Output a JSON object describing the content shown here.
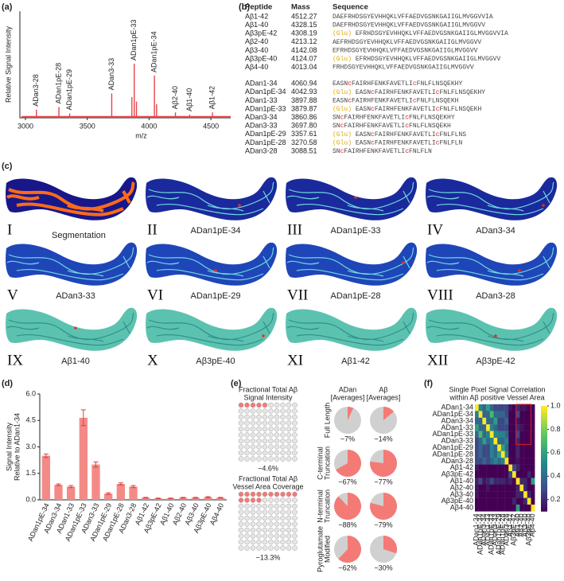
{
  "panel_labels": [
    "(a)",
    "(b)",
    "(c)",
    "(d)",
    "(e)",
    "(f)"
  ],
  "chart_data": [
    {
      "type": "spectrum",
      "y_label": "Relative Signal Intensity",
      "x_label": "m/z",
      "x": [
        3088.51,
        3270.58,
        3357.61,
        3697.8,
        3860.86,
        3879.87,
        3897.88,
        4042.93,
        4060.94,
        4213.12,
        4328.15,
        4512.27
      ],
      "values": [
        0.15,
        0.2,
        0.08,
        0.45,
        0.38,
        1.0,
        0.3,
        0.78,
        0.25,
        0.1,
        0.06,
        0.1
      ],
      "peak_labels": [
        "ADan3-28",
        "ADan1pE-28",
        "ADan1pE-29",
        "ADan3-33",
        null,
        "ADan1pE-33",
        null,
        "ADan1pE-34",
        null,
        "Aβ2-40",
        "Aβ1-40",
        "Aβ1-42"
      ],
      "xlim": [
        2955,
        4660
      ],
      "ylim": [
        0,
        1
      ],
      "xticks": [
        3000,
        3500,
        4000,
        4500
      ],
      "color": "#e8454a"
    },
    {
      "type": "bar",
      "y_label": [
        "Signal Intensity",
        "Relative to ADan1-34"
      ],
      "categories": [
        "ADan1pE-34",
        "ADan3-34",
        "ADan1-33",
        "ADan1pE-33",
        "ADan3-33",
        "ADan1pE-29",
        "ADan1pE-28",
        "ADan3-28",
        "Aβ1-42",
        "Aβ3pE-42",
        "Aβ1-40",
        "Aβ2-40",
        "Aβ3-40",
        "Aβ3pE-40",
        "Aβ4-40"
      ],
      "values": [
        2.5,
        0.85,
        0.75,
        4.65,
        2.0,
        0.35,
        0.9,
        0.75,
        0.12,
        0.08,
        0.08,
        0.12,
        0.12,
        0.15,
        0.12
      ],
      "errors": [
        0.1,
        0.05,
        0.06,
        0.45,
        0.15,
        0.05,
        0.06,
        0.06,
        0.02,
        0.02,
        0.02,
        0.02,
        0.02,
        0.03,
        0.02
      ],
      "ylim": [
        0,
        6
      ],
      "yticks": [
        {
          "value": 0,
          "label": "0.0"
        },
        1.5,
        {
          "value": 3,
          "label": "3.0"
        },
        4.5,
        {
          "value": 6,
          "label": "6.0"
        }
      ],
      "color": "#f48a86",
      "error_color": "#d94040"
    },
    {
      "type": "heatmap",
      "title": [
        "Single Pixel Signal Correlation",
        "within Aβ positive Vessel Area"
      ],
      "labels": [
        "ADan1-34",
        "ADan1pE-34",
        "ADan3-34",
        "ADan1-33",
        "ADan1pE-33",
        "ADan3-33",
        "ADan1pE-29",
        "ADan1pE-28",
        "ADan3-28",
        "Aβ1-42",
        "Aβ3pE-42",
        "Aβ1-40",
        "Aβ2-40",
        "Aβ3-40",
        "Aβ3pE-40",
        "Aβ4-40"
      ],
      "values": [
        [
          1,
          0.5,
          0.4,
          0.6,
          0.4,
          0.3,
          0.3,
          0.3,
          0.3,
          0.15,
          0.1,
          0.2,
          0.15,
          0.15,
          0.1,
          0.1
        ],
        [
          0.5,
          1,
          0.4,
          0.4,
          0.7,
          0.4,
          0.4,
          0.4,
          0.3,
          0.1,
          0.1,
          0.3,
          0.1,
          0.1,
          0.1,
          0.1
        ],
        [
          0.4,
          0.4,
          1,
          0.4,
          0.4,
          0.6,
          0.3,
          0.3,
          0.4,
          0.1,
          0.1,
          0.15,
          0.1,
          0.1,
          0.1,
          0.1
        ],
        [
          0.6,
          0.4,
          0.4,
          1,
          0.5,
          0.4,
          0.3,
          0.3,
          0.3,
          0.1,
          0.1,
          0.2,
          0.15,
          0.1,
          0.1,
          0.1
        ],
        [
          0.4,
          0.7,
          0.4,
          0.5,
          1,
          0.5,
          0.5,
          0.5,
          0.4,
          0.1,
          0.1,
          0.3,
          0.1,
          0.1,
          0.1,
          0.1
        ],
        [
          0.3,
          0.4,
          0.6,
          0.4,
          0.5,
          1,
          0.4,
          0.4,
          0.5,
          0.1,
          0.1,
          0.2,
          0.1,
          0.1,
          0.1,
          0.1
        ],
        [
          0.3,
          0.4,
          0.3,
          0.3,
          0.5,
          0.4,
          1,
          0.6,
          0.4,
          0.1,
          0.1,
          0.2,
          0.1,
          0.1,
          0.1,
          0.1
        ],
        [
          0.3,
          0.4,
          0.3,
          0.3,
          0.5,
          0.4,
          0.6,
          1,
          0.5,
          0.1,
          0.1,
          0.2,
          0.1,
          0.1,
          0.1,
          0.1
        ],
        [
          0.3,
          0.3,
          0.4,
          0.3,
          0.4,
          0.5,
          0.4,
          0.5,
          1,
          0.1,
          0.1,
          0.15,
          0.1,
          0.1,
          0.1,
          0.1
        ],
        [
          0.15,
          0.1,
          0.1,
          0.1,
          0.1,
          0.1,
          0.1,
          0.1,
          0.1,
          1,
          0.3,
          0.2,
          0.1,
          0.1,
          0.1,
          0.1
        ],
        [
          0.1,
          0.1,
          0.1,
          0.1,
          0.1,
          0.1,
          0.1,
          0.1,
          0.1,
          0.3,
          1,
          0.1,
          0.1,
          0.1,
          0.2,
          0.1
        ],
        [
          0.2,
          0.3,
          0.15,
          0.2,
          0.3,
          0.2,
          0.2,
          0.2,
          0.15,
          0.2,
          0.1,
          1,
          0.2,
          0.2,
          0.1,
          0.6
        ],
        [
          0.15,
          0.1,
          0.1,
          0.15,
          0.1,
          0.1,
          0.1,
          0.1,
          0.1,
          0.1,
          0.1,
          0.2,
          1,
          0.2,
          0.1,
          0.1
        ],
        [
          0.15,
          0.1,
          0.1,
          0.1,
          0.1,
          0.1,
          0.1,
          0.1,
          0.1,
          0.1,
          0.1,
          0.2,
          0.2,
          1,
          0.2,
          0.1
        ],
        [
          0.1,
          0.1,
          0.1,
          0.1,
          0.1,
          0.1,
          0.1,
          0.1,
          0.1,
          0.1,
          0.2,
          0.1,
          0.1,
          0.2,
          1,
          0.1
        ],
        [
          0.1,
          0.1,
          0.1,
          0.1,
          0.1,
          0.1,
          0.1,
          0.1,
          0.1,
          0.1,
          0.1,
          0.6,
          0.1,
          0.1,
          0.1,
          1
        ]
      ],
      "zlim": [
        0.1,
        1
      ],
      "zticks": [
        0.2,
        0.4,
        0.6,
        0.8,
        {
          "value": 1,
          "label": "1.0"
        }
      ],
      "colormap": "viridis"
    }
  ],
  "peptide_table": {
    "headers": [
      "Peptide",
      "Mass",
      "Sequence"
    ],
    "rows": [
      [
        "Aβ1-42",
        "4512.27",
        "DAEFRHDSGYEVHHQKLVFFAEDVGSNKGAIIGLMVGGVVIA"
      ],
      [
        "Aβ1-40",
        "4328.15",
        "DAEFRHDSGYEVHHQKLVFFAEDVGSNKGAIIGLMVGGVV"
      ],
      [
        "Aβ3pE-42",
        "4308.19",
        "(Glu) EFRHDSGYEVHHQKLVFFAEDVGSNKGAIIGLMVGGVVIA"
      ],
      [
        "Aβ2-40",
        "4213.12",
        "AEFRHDSGYEVHHQKLVFFAEDVGSNKGAIIGLMVGGVV"
      ],
      [
        "Aβ3-40",
        "4142.08",
        "EFRHDSGYEVHHQKLVFFAEDVGSNKGAIIGLMVGGVV"
      ],
      [
        "Aβ3pE-40",
        "4124.07",
        "(Glu) EFRHDSGYEVHHQKLVFFAEDVGSNKGAIIGLMVGGVV"
      ],
      [
        "Aβ4-40",
        "4013.04",
        "FRHDSGYEVHHQKLVFFAEDVGSNKGAIIGLMVGGVV"
      ],
      [
        "ADan1-34",
        "4060.94",
        "EASNcFAIRHFENKFAVETLIcFNLFLNSQEKHY"
      ],
      [
        "ADan1pE-34",
        "4042.93",
        "(Glu) EASNcFAIRHFENKFAVETLIcFNLFLNSQEKHY"
      ],
      [
        "ADan1-33",
        "3897.88",
        "EASNcFAIRHFENKFAVETLIcFNLFLNSQEKH"
      ],
      [
        "ADan1pE-33",
        "3879.87",
        "(Glu) EASNcFAIRHFENKFAVETLIcFNLFLNSQEKH"
      ],
      [
        "ADan3-34",
        "3860.86",
        "SNcFAIRHFENKFAVETLIcFNLFLNSQEKHY"
      ],
      [
        "ADan3-33",
        "3697.80",
        "SNcFAIRHFENKFAVETLIcFNLFLNSQEKH"
      ],
      [
        "ADan1pE-29",
        "3357.61",
        "(Glu) EASNcFAIRHFENKFAVETLIcFNLFLNS"
      ],
      [
        "ADan1pE-28",
        "3270.58",
        "(Glu) EASNcFAIRHFENKFAVETLIcFNLFLN"
      ],
      [
        "ADan3-28",
        "3088.51",
        "SNcFAIRHFENKFAVETLIcFNLFLN"
      ]
    ]
  },
  "image_grid": {
    "tiles": [
      {
        "numeral": "I",
        "label": "Segmentation"
      },
      {
        "numeral": "II",
        "label": "ADan1pE-34"
      },
      {
        "numeral": "III",
        "label": "ADan1pE-33"
      },
      {
        "numeral": "IV",
        "label": "ADan3-34"
      },
      {
        "numeral": "V",
        "label": "ADan3-33"
      },
      {
        "numeral": "VI",
        "label": "ADan1pE-29"
      },
      {
        "numeral": "VII",
        "label": "ADan1pE-28"
      },
      {
        "numeral": "VIII",
        "label": "ADan3-28"
      },
      {
        "numeral": "IX",
        "label": "Aβ1-40"
      },
      {
        "numeral": "X",
        "label": "Aβ3pE-40"
      },
      {
        "numeral": "XI",
        "label": "Aβ1-42"
      },
      {
        "numeral": "XII",
        "label": "Aβ3pE-42"
      }
    ]
  },
  "fractions": {
    "grids": [
      {
        "title": [
          "Fractional Total Aβ",
          "Signal Intensity"
        ],
        "value": 4.6,
        "value_label": "~4.6%"
      },
      {
        "title": [
          "Fractional Total Aβ",
          "Vessel Area Coverage"
        ],
        "value": 13.3,
        "value_label": "~13.3%"
      }
    ],
    "column_headers": [
      [
        "ADan",
        "[Averages]"
      ],
      [
        "Aβ",
        "[Averages]"
      ]
    ],
    "row_labels": [
      [
        "Full Length"
      ],
      [
        "C-terminal",
        "Truncation"
      ],
      [
        "N-terminal",
        "Truncation"
      ],
      [
        "Pyroglutamate",
        "Modified"
      ]
    ],
    "pies": [
      [
        7,
        14
      ],
      [
        67,
        77
      ],
      [
        88,
        79
      ],
      [
        62,
        30
      ]
    ],
    "pie_labels": [
      [
        "~7%",
        "~14%"
      ],
      [
        "~67%",
        "~77%"
      ],
      [
        "~88%",
        "~79%"
      ],
      [
        "~62%",
        "~30%"
      ]
    ],
    "color": "#f47a76",
    "rest_color": "#d0d0d0"
  }
}
